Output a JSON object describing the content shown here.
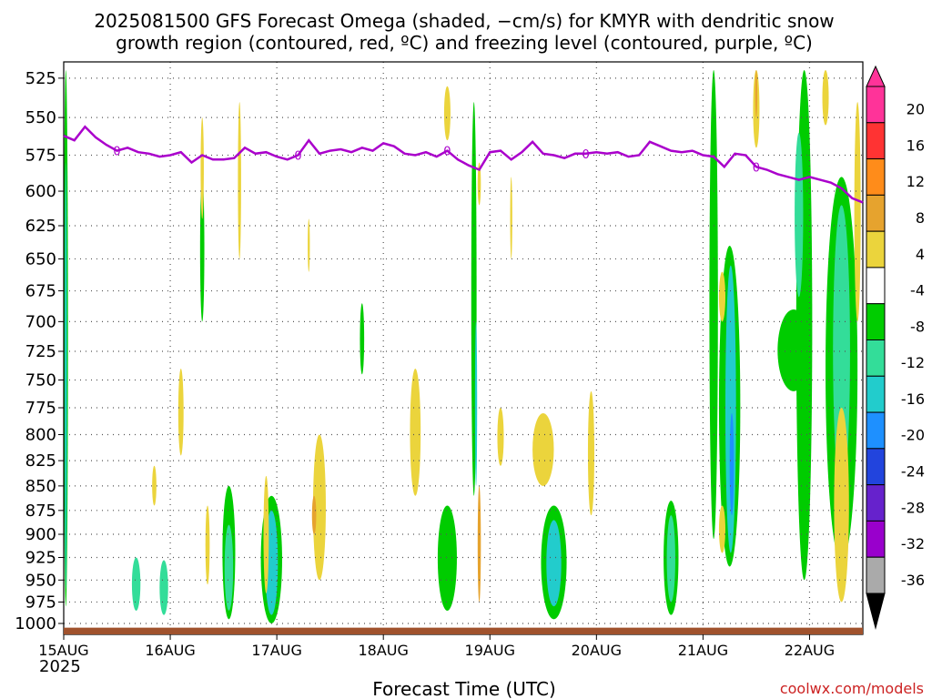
{
  "chart_data": {
    "type": "heatmap",
    "title_line1": "2025081500 GFS Forecast Omega (shaded, −cm/s) for KMYR with dendritic snow",
    "title_line2": "growth region (contoured, red, ºC) and freezing level (contoured, purple, ºC)",
    "xlabel": "Forecast Time (UTC)",
    "ylabel": "",
    "credit": "coolwx.com/models",
    "x_ticks": [
      "15AUG",
      "16AUG",
      "17AUG",
      "18AUG",
      "19AUG",
      "20AUG",
      "21AUG",
      "22AUG"
    ],
    "x_sublabel": "2025",
    "x_range_days": [
      0,
      7.5
    ],
    "y_ticks": [
      525,
      550,
      575,
      600,
      625,
      650,
      675,
      700,
      725,
      750,
      775,
      800,
      825,
      850,
      875,
      900,
      925,
      950,
      975,
      1000
    ],
    "y_scale": "log-pressure",
    "ylim": [
      1013,
      515
    ],
    "grid": true,
    "freezing_level_label": "0",
    "freezing_level": {
      "day": [
        0,
        0.1,
        0.2,
        0.3,
        0.4,
        0.5,
        0.6,
        0.7,
        0.8,
        0.9,
        1.0,
        1.1,
        1.2,
        1.3,
        1.4,
        1.5,
        1.6,
        1.7,
        1.8,
        1.9,
        2.0,
        2.1,
        2.2,
        2.3,
        2.4,
        2.5,
        2.6,
        2.7,
        2.8,
        2.9,
        3.0,
        3.1,
        3.2,
        3.3,
        3.4,
        3.5,
        3.6,
        3.7,
        3.8,
        3.9,
        4.0,
        4.1,
        4.2,
        4.3,
        4.4,
        4.5,
        4.6,
        4.7,
        4.8,
        4.9,
        5.0,
        5.1,
        5.2,
        5.3,
        5.4,
        5.5,
        5.6,
        5.7,
        5.8,
        5.9,
        6.0,
        6.1,
        6.2,
        6.3,
        6.4,
        6.5,
        6.6,
        6.7,
        6.8,
        6.9,
        7.0,
        7.1,
        7.2,
        7.3,
        7.4,
        7.5
      ],
      "pressure": [
        562,
        565,
        556,
        563,
        568,
        572,
        570,
        573,
        574,
        576,
        575,
        573,
        580,
        575,
        578,
        578,
        577,
        570,
        574,
        573,
        576,
        578,
        575,
        565,
        574,
        572,
        571,
        573,
        570,
        572,
        567,
        569,
        574,
        575,
        573,
        576,
        572,
        578,
        582,
        585,
        573,
        572,
        578,
        573,
        566,
        574,
        575,
        577,
        574,
        574,
        573,
        574,
        573,
        576,
        575,
        566,
        569,
        572,
        573,
        572,
        575,
        576,
        583,
        574,
        575,
        583,
        585,
        588,
        590,
        592,
        590,
        592,
        594,
        598,
        605,
        608
      ]
    },
    "colorbar": {
      "ticks": [
        20,
        16,
        12,
        8,
        4,
        -4,
        -8,
        -12,
        -16,
        -20,
        -24,
        -28,
        -32,
        -36
      ],
      "bins": [
        {
          "min": 20,
          "max": 24,
          "color": "#ff3399"
        },
        {
          "min": 16,
          "max": 20,
          "color": "#ff3333"
        },
        {
          "min": 12,
          "max": 16,
          "color": "#ff8c1a"
        },
        {
          "min": 8,
          "max": 12,
          "color": "#e6a32e"
        },
        {
          "min": 4,
          "max": 8,
          "color": "#ebd43c"
        },
        {
          "min": -4,
          "max": 4,
          "color": "#ffffff"
        },
        {
          "min": -8,
          "max": -4,
          "color": "#00cc00"
        },
        {
          "min": -12,
          "max": -8,
          "color": "#33dd99"
        },
        {
          "min": -16,
          "max": -12,
          "color": "#22cccc"
        },
        {
          "min": -20,
          "max": -16,
          "color": "#1e90ff"
        },
        {
          "min": -24,
          "max": -20,
          "color": "#2244dd"
        },
        {
          "min": -28,
          "max": -24,
          "color": "#6622cc"
        },
        {
          "min": -32,
          "max": -28,
          "color": "#9900cc"
        },
        {
          "min": -36,
          "max": -32,
          "color": "#aaaaaa"
        }
      ]
    },
    "omega_regions": [
      {
        "day": 0.02,
        "p_top": 520,
        "p_bot": 980,
        "width_days": 0.04,
        "value": -6
      },
      {
        "day": 0.02,
        "p_top": 580,
        "p_bot": 960,
        "width_days": 0.02,
        "value": -14
      },
      {
        "day": 0.68,
        "p_top": 925,
        "p_bot": 985,
        "width_days": 0.08,
        "value": -9
      },
      {
        "day": 0.94,
        "p_top": 928,
        "p_bot": 990,
        "width_days": 0.08,
        "value": -9
      },
      {
        "day": 1.3,
        "p_top": 590,
        "p_bot": 700,
        "width_days": 0.04,
        "value": -6
      },
      {
        "day": 1.55,
        "p_top": 850,
        "p_bot": 995,
        "width_days": 0.12,
        "value": -6
      },
      {
        "day": 1.55,
        "p_top": 890,
        "p_bot": 985,
        "width_days": 0.08,
        "value": -12
      },
      {
        "day": 1.95,
        "p_top": 860,
        "p_bot": 1000,
        "width_days": 0.2,
        "value": -6
      },
      {
        "day": 1.95,
        "p_top": 875,
        "p_bot": 990,
        "width_days": 0.12,
        "value": -13
      },
      {
        "day": 2.8,
        "p_top": 685,
        "p_bot": 745,
        "width_days": 0.04,
        "value": -6
      },
      {
        "day": 3.6,
        "p_top": 870,
        "p_bot": 985,
        "width_days": 0.18,
        "value": -6
      },
      {
        "day": 3.85,
        "p_top": 540,
        "p_bot": 860,
        "width_days": 0.05,
        "value": -6
      },
      {
        "day": 3.87,
        "p_top": 700,
        "p_bot": 850,
        "width_days": 0.02,
        "value": -13
      },
      {
        "day": 4.6,
        "p_top": 870,
        "p_bot": 995,
        "width_days": 0.24,
        "value": -6
      },
      {
        "day": 4.6,
        "p_top": 885,
        "p_bot": 980,
        "width_days": 0.14,
        "value": -14
      },
      {
        "day": 5.7,
        "p_top": 865,
        "p_bot": 990,
        "width_days": 0.14,
        "value": -6
      },
      {
        "day": 5.7,
        "p_top": 880,
        "p_bot": 975,
        "width_days": 0.08,
        "value": -10
      },
      {
        "day": 6.1,
        "p_top": 520,
        "p_bot": 905,
        "width_days": 0.08,
        "value": -6
      },
      {
        "day": 6.25,
        "p_top": 640,
        "p_bot": 935,
        "width_days": 0.2,
        "value": -6
      },
      {
        "day": 6.26,
        "p_top": 655,
        "p_bot": 920,
        "width_days": 0.1,
        "value": -13
      },
      {
        "day": 6.27,
        "p_top": 780,
        "p_bot": 880,
        "width_days": 0.04,
        "value": -17
      },
      {
        "day": 6.85,
        "p_top": 690,
        "p_bot": 760,
        "width_days": 0.3,
        "value": -6
      },
      {
        "day": 6.95,
        "p_top": 520,
        "p_bot": 950,
        "width_days": 0.15,
        "value": -6
      },
      {
        "day": 7.3,
        "p_top": 590,
        "p_bot": 930,
        "width_days": 0.3,
        "value": -6
      },
      {
        "day": 7.3,
        "p_top": 610,
        "p_bot": 860,
        "width_days": 0.16,
        "value": -10
      },
      {
        "day": 6.9,
        "p_top": 560,
        "p_bot": 680,
        "width_days": 0.08,
        "value": -10
      },
      {
        "day": 6.5,
        "p_top": 520,
        "p_bot": 570,
        "width_days": 0.06,
        "value": 6
      },
      {
        "day": 6.5,
        "p_top": 520,
        "p_bot": 550,
        "width_days": 0.02,
        "value": 10
      },
      {
        "day": 7.15,
        "p_top": 520,
        "p_bot": 555,
        "width_days": 0.06,
        "value": 6
      },
      {
        "day": 7.45,
        "p_top": 540,
        "p_bot": 700,
        "width_days": 0.06,
        "value": 6
      },
      {
        "day": 7.3,
        "p_top": 775,
        "p_bot": 975,
        "width_days": 0.14,
        "value": 6
      },
      {
        "day": 0.85,
        "p_top": 830,
        "p_bot": 870,
        "width_days": 0.04,
        "value": 6
      },
      {
        "day": 1.1,
        "p_top": 740,
        "p_bot": 820,
        "width_days": 0.05,
        "value": 6
      },
      {
        "day": 1.3,
        "p_top": 550,
        "p_bot": 620,
        "width_days": 0.03,
        "value": 6
      },
      {
        "day": 1.35,
        "p_top": 870,
        "p_bot": 955,
        "width_days": 0.04,
        "value": 6
      },
      {
        "day": 1.65,
        "p_top": 540,
        "p_bot": 650,
        "width_days": 0.03,
        "value": 6
      },
      {
        "day": 1.9,
        "p_top": 840,
        "p_bot": 965,
        "width_days": 0.05,
        "value": 6
      },
      {
        "day": 2.3,
        "p_top": 620,
        "p_bot": 660,
        "width_days": 0.02,
        "value": 6
      },
      {
        "day": 2.4,
        "p_top": 800,
        "p_bot": 950,
        "width_days": 0.12,
        "value": 6
      },
      {
        "day": 2.35,
        "p_top": 860,
        "p_bot": 900,
        "width_days": 0.04,
        "value": 10
      },
      {
        "day": 3.3,
        "p_top": 740,
        "p_bot": 860,
        "width_days": 0.1,
        "value": 6
      },
      {
        "day": 3.9,
        "p_top": 850,
        "p_bot": 975,
        "width_days": 0.03,
        "value": 10
      },
      {
        "day": 3.6,
        "p_top": 530,
        "p_bot": 565,
        "width_days": 0.06,
        "value": 6
      },
      {
        "day": 4.2,
        "p_top": 590,
        "p_bot": 650,
        "width_days": 0.02,
        "value": 6
      },
      {
        "day": 4.1,
        "p_top": 775,
        "p_bot": 830,
        "width_days": 0.06,
        "value": 6
      },
      {
        "day": 3.9,
        "p_top": 580,
        "p_bot": 610,
        "width_days": 0.03,
        "value": 6
      },
      {
        "day": 4.5,
        "p_top": 780,
        "p_bot": 850,
        "width_days": 0.2,
        "value": 6
      },
      {
        "day": 4.95,
        "p_top": 760,
        "p_bot": 880,
        "width_days": 0.06,
        "value": 6
      },
      {
        "day": 6.18,
        "p_top": 660,
        "p_bot": 700,
        "width_days": 0.06,
        "value": 6
      },
      {
        "day": 6.18,
        "p_top": 870,
        "p_bot": 920,
        "width_days": 0.06,
        "value": 6
      }
    ],
    "ground_strip_color": "#a0522d",
    "freezing_line_color": "#aa00cc"
  }
}
